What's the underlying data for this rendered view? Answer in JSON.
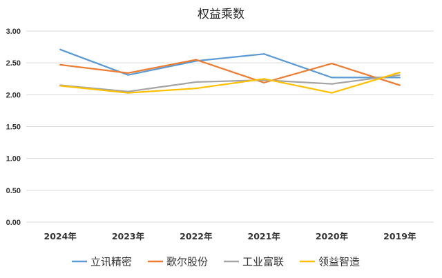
{
  "chart_data": {
    "type": "line",
    "title": "权益乘数",
    "categories": [
      "2024年",
      "2023年",
      "2022年",
      "2021年",
      "2020年",
      "2019年"
    ],
    "y_ticks": [
      "0.00",
      "0.50",
      "1.00",
      "1.50",
      "2.00",
      "2.50",
      "3.00"
    ],
    "ylim": [
      0,
      3
    ],
    "grid": true,
    "legend_position": "bottom",
    "series": [
      {
        "name": "立讯精密",
        "color": "#5b9bd5",
        "values": [
          2.71,
          2.31,
          2.53,
          2.64,
          2.27,
          2.27
        ]
      },
      {
        "name": "歌尔股份",
        "color": "#ed7d31",
        "values": [
          2.47,
          2.34,
          2.55,
          2.19,
          2.49,
          2.15
        ]
      },
      {
        "name": "工业富联",
        "color": "#a5a5a5",
        "values": [
          2.15,
          2.05,
          2.2,
          2.23,
          2.17,
          2.31
        ]
      },
      {
        "name": "领益智造",
        "color": "#ffc000",
        "values": [
          2.14,
          2.03,
          2.1,
          2.25,
          2.03,
          2.35
        ]
      }
    ]
  }
}
